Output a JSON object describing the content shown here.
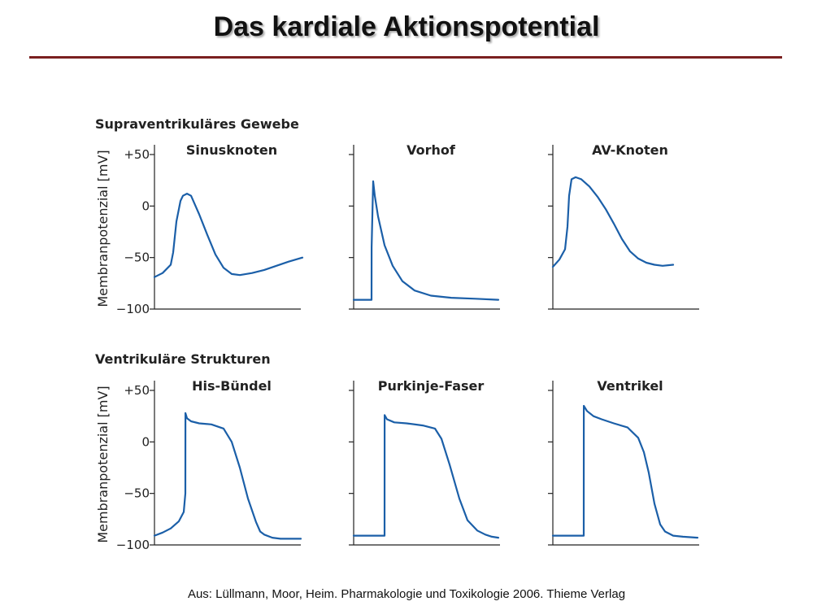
{
  "slide": {
    "title": "Das  kardiale Aktionspotential",
    "source": "Aus: Lüllmann, Moor, Heim. Pharmakologie und Toxikologie 2006. Thieme Verlag"
  },
  "colors": {
    "trace": "#1b5fa8",
    "title_rule": "#7a1f1f"
  },
  "chart_data": {
    "type": "line",
    "ylabel": "Membranpotenzial [mV]",
    "ylim": [
      -100,
      50
    ],
    "yticks": [
      50,
      0,
      -50,
      -100
    ],
    "ytick_labels": [
      "+50",
      "0",
      "−50",
      "−100"
    ],
    "groups": [
      {
        "title": "Supraventrikuläres Gewebe",
        "panels": [
          {
            "title": "Sinusknoten",
            "series": [
              {
                "x": [
                  0,
                  10,
                  20,
                  23,
                  27,
                  32,
                  35,
                  40,
                  45,
                  55,
                  65,
                  75,
                  85,
                  95,
                  105,
                  120,
                  135,
                  150,
                  165,
                  182
                ],
                "y": [
                  -69,
                  -65,
                  -57,
                  -45,
                  -15,
                  5,
                  10,
                  12,
                  10,
                  -8,
                  -28,
                  -47,
                  -60,
                  -66,
                  -67,
                  -65,
                  -62,
                  -58,
                  -54,
                  -50
                ]
              }
            ]
          },
          {
            "title": "Vorhof",
            "series": [
              {
                "x": [
                  0,
                  22,
                  22.1,
                  24,
                  26,
                  30,
                  38,
                  48,
                  60,
                  75,
                  95,
                  120,
                  150,
                  178
                ],
                "y": [
                  -91,
                  -91,
                  -40,
                  24,
                  10,
                  -10,
                  -38,
                  -58,
                  -73,
                  -82,
                  -87,
                  -89,
                  -90,
                  -91
                ]
              }
            ]
          },
          {
            "title": "AV-Knoten",
            "series": [
              {
                "x": [
                  0,
                  8,
                  15,
                  18,
                  20,
                  23,
                  28,
                  35,
                  45,
                  55,
                  65,
                  75,
                  85,
                  95,
                  105,
                  115,
                  125,
                  135,
                  148
                ],
                "y": [
                  -59,
                  -52,
                  -42,
                  -20,
                  10,
                  26,
                  28,
                  26,
                  19,
                  9,
                  -3,
                  -17,
                  -32,
                  -44,
                  -51,
                  -55,
                  -57,
                  -58,
                  -57
                ]
              }
            ]
          }
        ]
      },
      {
        "title": "Ventrikuläre Strukturen",
        "panels": [
          {
            "title": "His-Bündel",
            "series": [
              {
                "x": [
                  0,
                  10,
                  20,
                  30,
                  36,
                  38,
                  38.1,
                  40,
                  45,
                  55,
                  70,
                  85,
                  95,
                  105,
                  115,
                  125,
                  130,
                  135,
                  145,
                  155,
                  170,
                  180
                ],
                "y": [
                  -91,
                  -88,
                  -84,
                  -77,
                  -68,
                  -50,
                  28,
                  23,
                  20,
                  18,
                  17,
                  13,
                  0,
                  -25,
                  -55,
                  -78,
                  -87,
                  -90,
                  -93,
                  -94,
                  -94,
                  -94
                ]
              }
            ]
          },
          {
            "title": "Purkinje-Faser",
            "series": [
              {
                "x": [
                  0,
                  38,
                  38.1,
                  41,
                  50,
                  65,
                  85,
                  100,
                  108,
                  118,
                  130,
                  140,
                  152,
                  162,
                  170,
                  178
                ],
                "y": [
                  -91,
                  -91,
                  26,
                  22,
                  19,
                  18,
                  16,
                  13,
                  3,
                  -22,
                  -55,
                  -76,
                  -86,
                  -90,
                  -92,
                  -93
                ]
              }
            ]
          },
          {
            "title": "Ventrikel",
            "series": [
              {
                "x": [
                  0,
                  38,
                  38.1,
                  42,
                  50,
                  60,
                  75,
                  92,
                  105,
                  112,
                  118,
                  125,
                  132,
                  138,
                  148,
                  160,
                  178
                ],
                "y": [
                  -91,
                  -91,
                  35,
                  30,
                  25,
                  22,
                  18,
                  14,
                  4,
                  -10,
                  -30,
                  -60,
                  -80,
                  -87,
                  -91,
                  -92,
                  -93
                ]
              }
            ]
          }
        ]
      }
    ]
  }
}
